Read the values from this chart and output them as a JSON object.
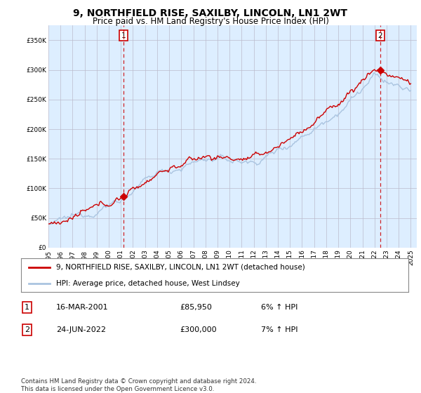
{
  "title": "9, NORTHFIELD RISE, SAXILBY, LINCOLN, LN1 2WT",
  "subtitle": "Price paid vs. HM Land Registry's House Price Index (HPI)",
  "ylim": [
    0,
    370000
  ],
  "yticks": [
    0,
    50000,
    100000,
    150000,
    200000,
    250000,
    300000,
    350000
  ],
  "hpi_color": "#aac4e0",
  "price_color": "#cc0000",
  "bg_chart": "#ddeeff",
  "sale1_year": 2001.21,
  "sale1_price": 85950,
  "sale2_year": 2022.48,
  "sale2_price": 300000,
  "legend_line1": "9, NORTHFIELD RISE, SAXILBY, LINCOLN, LN1 2WT (detached house)",
  "legend_line2": "HPI: Average price, detached house, West Lindsey",
  "table_row1": [
    "1",
    "16-MAR-2001",
    "£85,950",
    "6% ↑ HPI"
  ],
  "table_row2": [
    "2",
    "24-JUN-2022",
    "£300,000",
    "7% ↑ HPI"
  ],
  "footer": "Contains HM Land Registry data © Crown copyright and database right 2024.\nThis data is licensed under the Open Government Licence v3.0.",
  "background_color": "#ffffff",
  "grid_color": "#bbbbcc"
}
